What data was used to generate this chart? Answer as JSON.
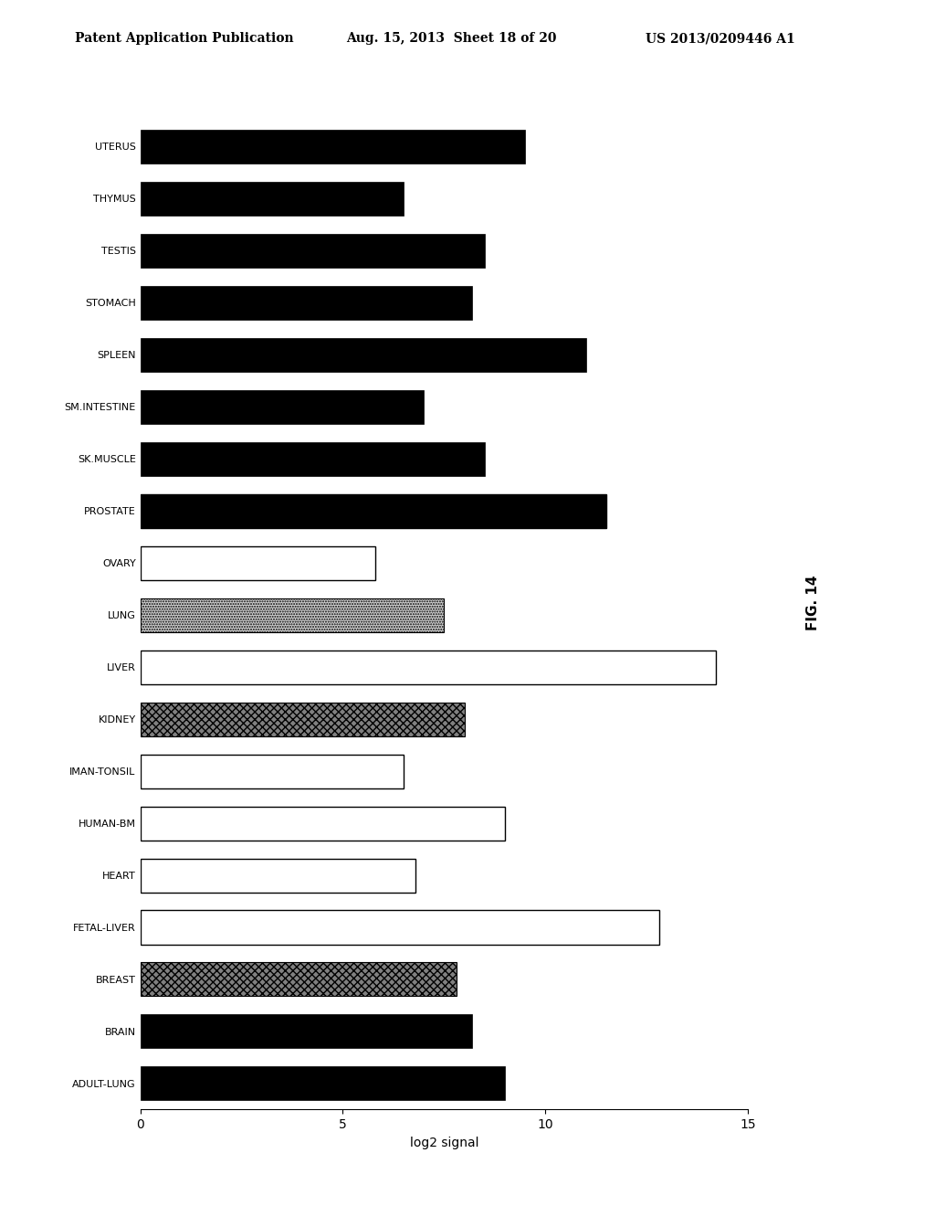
{
  "categories": [
    "ADULT-LUNG",
    "BRAIN",
    "BREAST",
    "FETAL-LIVER",
    "HEART",
    "HUMAN-BM",
    "IMAN-TONSIL",
    "KIDNEY",
    "LIVER",
    "LUNG",
    "OVARY",
    "PROSTATE",
    "SK.MUSCLE",
    "SM.INTESTINE",
    "SPLEEN",
    "STOMACH",
    "TESTIS",
    "THYMUS",
    "UTERUS"
  ],
  "values": [
    9.0,
    8.2,
    7.8,
    12.8,
    6.8,
    9.0,
    6.5,
    8.0,
    14.2,
    7.5,
    5.8,
    11.5,
    8.5,
    7.0,
    11.0,
    8.2,
    8.5,
    6.5,
    9.5
  ],
  "bar_styles": [
    "black",
    "black",
    "hatched_dark",
    "white",
    "white",
    "white",
    "white_outline",
    "hatched_dark2",
    "white_long",
    "hatched_light",
    "white_outline",
    "black_outline",
    "black",
    "black",
    "black",
    "black",
    "black",
    "black",
    "black"
  ],
  "title": "",
  "xlabel": "log2 signal",
  "xlim_min": 0,
  "xlim_max": 15,
  "fig_label": "FIG. 14",
  "header_line1": "Patent Application Publication",
  "header_line2": "Aug. 15, 2013  Sheet 18 of 20",
  "header_line3": "US 2013/0209446 A1",
  "fig_width": 10.24,
  "fig_height": 13.2,
  "dpi": 100
}
